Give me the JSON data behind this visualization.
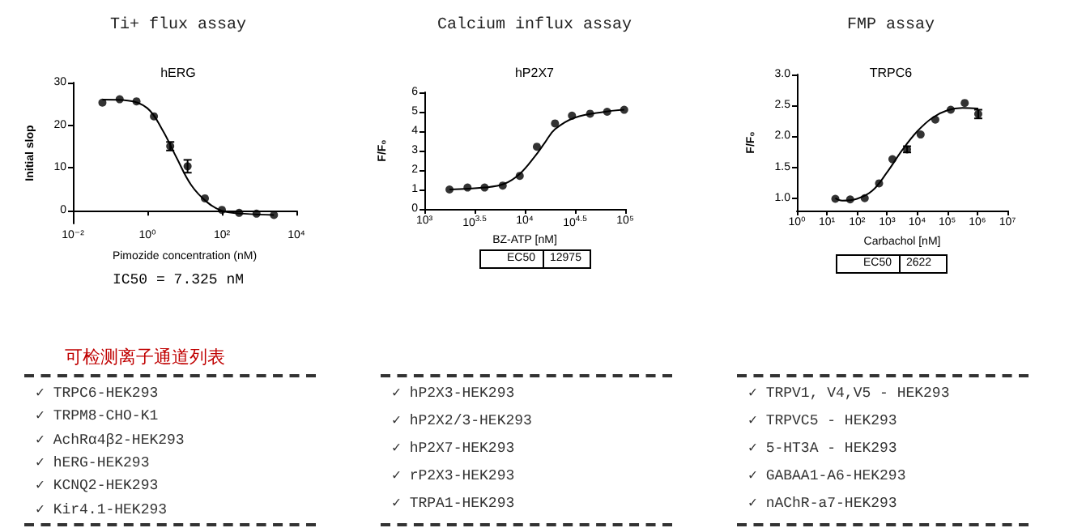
{
  "chart_data": [
    {
      "type": "scatter",
      "title": "Ti+ flux assay",
      "subtitle": "hERG",
      "xlabel": "Pimozide concentration (nM)",
      "ylabel": "Initial slop",
      "log": "x",
      "grid": false,
      "marker": "circle",
      "xlim": [
        0.01,
        10000
      ],
      "xticks": [
        {
          "value": 0.01,
          "label": "10⁻²"
        },
        {
          "value": 1,
          "label": "10⁰"
        },
        {
          "value": 100,
          "label": "10²"
        },
        {
          "value": 10000,
          "label": "10⁴"
        }
      ],
      "ylim": [
        -3,
        30
      ],
      "yticks": [
        0,
        10,
        20,
        30
      ],
      "series": [
        {
          "type": "scatter",
          "color": "#000000",
          "x": [
            0.062,
            0.18,
            0.51,
            1.5,
            4.1,
            12,
            35,
            100,
            290,
            850,
            2500
          ],
          "values": [
            25.3,
            26.1,
            25.6,
            22.1,
            15.1,
            10.4,
            2.9,
            0.2,
            -0.5,
            -0.7,
            -1.0
          ],
          "errors": [
            null,
            null,
            null,
            null,
            1.0,
            1.5,
            null,
            null,
            null,
            null,
            null
          ]
        },
        {
          "type": "line",
          "color": "#000000",
          "marker": "none",
          "x": [
            0.062,
            0.3,
            1,
            2.5,
            6,
            15,
            40,
            100,
            400,
            2500
          ],
          "values": [
            26,
            25.8,
            24,
            19,
            12.5,
            6,
            2,
            0,
            -0.7,
            -1
          ]
        }
      ],
      "annotations": [
        "IC50 = 7.325 nM"
      ]
    },
    {
      "type": "scatter",
      "title": "Calcium influx assay",
      "subtitle": "hP2X7",
      "xlabel": "BZ-ATP [nM]",
      "ylabel": "F/F₀",
      "log": "x",
      "grid": false,
      "marker": "circle",
      "xlim": [
        1000,
        100000
      ],
      "xticks": [
        {
          "value": 1000,
          "label": "10³"
        },
        {
          "value": 3162.28,
          "label": "10$^{3.5}$"
        },
        {
          "value": 10000,
          "label": "10⁴"
        },
        {
          "value": 31622.8,
          "label": "10$^{4.5}$"
        },
        {
          "value": 100000,
          "label": "10⁵"
        }
      ],
      "ylim": [
        0,
        6
      ],
      "yticks": [
        0,
        1,
        2,
        3,
        4,
        5,
        6
      ],
      "series": [
        {
          "type": "scatter",
          "color": "#000000",
          "x": [
            1780,
            2690,
            3980,
            6030,
            8910,
            13200,
            20000,
            29500,
            44700,
            66100,
            97700
          ],
          "values": [
            1.0,
            1.1,
            1.1,
            1.2,
            1.7,
            3.2,
            4.4,
            4.8,
            4.9,
            5.0,
            5.1
          ]
        },
        {
          "type": "line",
          "color": "#000000",
          "marker": "none",
          "x": [
            1780,
            3980,
            6310,
            8910,
            12600,
            15800,
            20000,
            31600,
            63100,
            97700
          ],
          "values": [
            1.0,
            1.1,
            1.3,
            1.8,
            2.7,
            3.4,
            4.1,
            4.7,
            5.0,
            5.1
          ]
        }
      ],
      "annotations": [
        "EC50",
        "12975"
      ]
    },
    {
      "type": "scatter",
      "title": "FMP assay",
      "subtitle": "TRPC6",
      "xlabel": "Carbachol [nM]",
      "ylabel": "F/F₀",
      "log": "x",
      "grid": false,
      "marker": "circle",
      "xlim": [
        1,
        10000000
      ],
      "xticks": [
        {
          "value": 1,
          "label": "10⁰"
        },
        {
          "value": 10,
          "label": "10¹"
        },
        {
          "value": 100,
          "label": "10²"
        },
        {
          "value": 1000,
          "label": "10³"
        },
        {
          "value": 10000,
          "label": "10⁴"
        },
        {
          "value": 100000,
          "label": "10⁵"
        },
        {
          "value": 1000000,
          "label": "10⁶"
        },
        {
          "value": 10000000,
          "label": "10⁷"
        }
      ],
      "ylim": [
        0.8,
        3.0
      ],
      "yticks": [
        {
          "value": 1,
          "label": "1.0"
        },
        1.5,
        {
          "value": 2,
          "label": "2.0"
        },
        2.5,
        {
          "value": 3,
          "label": "3.0"
        }
      ],
      "series": [
        {
          "type": "scatter",
          "color": "#000000",
          "x": [
            19,
            59,
            180,
            540,
            1500,
            4600,
            13000,
            40000,
            130000,
            380000,
            1070000
          ],
          "values": [
            0.99,
            0.98,
            1.0,
            1.24,
            1.63,
            1.79,
            2.03,
            2.27,
            2.43,
            2.54,
            2.36
          ],
          "errors": [
            null,
            null,
            null,
            null,
            null,
            0.05,
            null,
            null,
            null,
            null,
            0.07
          ]
        },
        {
          "type": "line",
          "color": "#000000",
          "marker": "none",
          "x": [
            19,
            32,
            100,
            320,
            1000,
            3200,
            10000,
            32000,
            100000,
            320000,
            1070000
          ],
          "values": [
            1.0,
            0.96,
            0.99,
            1.12,
            1.42,
            1.78,
            2.08,
            2.3,
            2.42,
            2.46,
            2.45
          ]
        }
      ],
      "annotations": [
        "EC50",
        "2622"
      ]
    },
    {
      "type": "other",
      "title": "可检测离子通道列表",
      "annotations": [
        "✓ TRPC6-HEK293",
        "✓ TRPM8-CHO-K1",
        "✓ AchRα4β2-HEK293",
        "✓ hERG-HEK293",
        "✓ KCNQ2-HEK293",
        "✓ Kir4.1-HEK293"
      ]
    },
    {
      "type": "other",
      "annotations": [
        "✓ hP2X3-HEK293",
        "✓ hP2X2/3-HEK293",
        "✓ hP2X7-HEK293",
        "✓ rP2X3-HEK293",
        "✓ TRPA1-HEK293"
      ]
    },
    {
      "type": "other",
      "annotations": [
        "✓ TRPV1, V4,V5 - HEK293",
        "✓ TRPVC5 - HEK293",
        "✓ 5-HT3A - HEK293",
        "✓ GABAA1-A6-HEK293",
        "✓ nAChR-a7-HEK293"
      ]
    }
  ]
}
